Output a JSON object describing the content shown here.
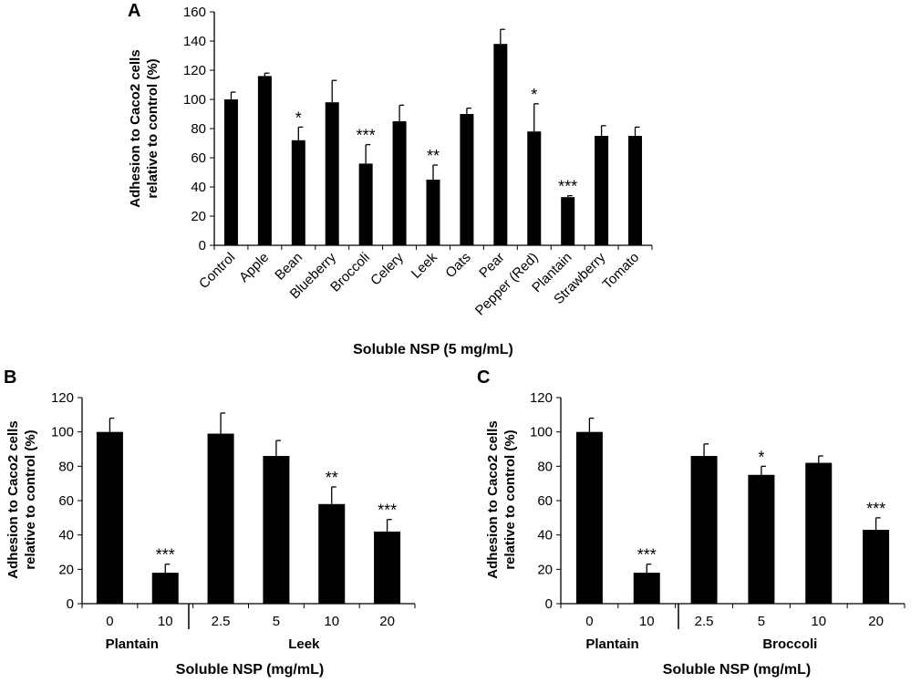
{
  "chart_data": [
    {
      "panel": "A",
      "type": "bar",
      "categories": [
        "Control",
        "Apple",
        "Bean",
        "Blueberry",
        "Broccoli",
        "Celery",
        "Leek",
        "Oats",
        "Pear",
        "Pepper (Red)",
        "Plantain",
        "Strawberry",
        "Tomato"
      ],
      "values": [
        100,
        116,
        72,
        98,
        56,
        85,
        45,
        90,
        138,
        78,
        33,
        75,
        75
      ],
      "errors": [
        5,
        2,
        9,
        15,
        13,
        11,
        10,
        4,
        10,
        19,
        1,
        7,
        6
      ],
      "significance": [
        "",
        "",
        "*",
        "",
        "***",
        "",
        "**",
        "",
        "",
        "*",
        "***",
        "",
        ""
      ],
      "ylabel_line1": "Adhesion to Caco2 cells",
      "ylabel_line2": "relative to control (%)",
      "xlabel": "Soluble NSP (5 mg/mL)",
      "ylim": [
        0,
        160
      ],
      "yticks": [
        0,
        20,
        40,
        60,
        80,
        100,
        120,
        140,
        160
      ],
      "tick_label_rotation": "45-degree"
    },
    {
      "panel": "B",
      "type": "bar",
      "categories": [
        "0",
        "10",
        "2.5",
        "5",
        "10",
        "20"
      ],
      "values": [
        100,
        18,
        99,
        86,
        58,
        42
      ],
      "errors": [
        8,
        5,
        12,
        9,
        10,
        7
      ],
      "significance": [
        "",
        "***",
        "",
        "",
        "**",
        "***"
      ],
      "groups": [
        {
          "label": "Plantain",
          "start": 0,
          "end": 1
        },
        {
          "label": "Leek",
          "start": 2,
          "end": 5
        }
      ],
      "ylabel_line1": "Adhesion to Caco2 cells",
      "ylabel_line2": "relative to control (%)",
      "xlabel": "Soluble NSP (mg/mL)",
      "ylim": [
        0,
        120
      ],
      "yticks": [
        0,
        20,
        40,
        60,
        80,
        100,
        120
      ]
    },
    {
      "panel": "C",
      "type": "bar",
      "categories": [
        "0",
        "10",
        "2.5",
        "5",
        "10",
        "20"
      ],
      "values": [
        100,
        18,
        86,
        75,
        82,
        43
      ],
      "errors": [
        8,
        5,
        7,
        5,
        4,
        7
      ],
      "significance": [
        "",
        "***",
        "",
        "*",
        "",
        "***"
      ],
      "groups": [
        {
          "label": "Plantain",
          "start": 0,
          "end": 1
        },
        {
          "label": "Broccoli",
          "start": 2,
          "end": 5
        }
      ],
      "ylabel_line1": "Adhesion to Caco2 cells",
      "ylabel_line2": "relative to control (%)",
      "xlabel": "Soluble NSP (mg/mL)",
      "ylim": [
        0,
        120
      ],
      "yticks": [
        0,
        20,
        40,
        60,
        80,
        100,
        120
      ]
    }
  ]
}
